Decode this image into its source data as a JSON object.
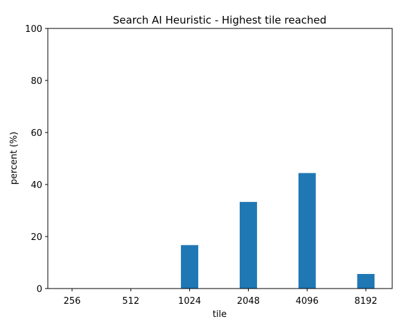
{
  "chart_data": {
    "type": "bar",
    "title": "Search AI Heuristic - Highest tile reached",
    "xlabel": "tile",
    "ylabel": "percent (%)",
    "categories": [
      "256",
      "512",
      "1024",
      "2048",
      "4096",
      "8192"
    ],
    "values": [
      0,
      0,
      16.7,
      33.3,
      44.4,
      5.6
    ],
    "ylim": [
      0,
      100
    ],
    "yticks": [
      "0",
      "20",
      "40",
      "60",
      "80",
      "100"
    ],
    "grid": false,
    "bar_color": "#1f77b4"
  }
}
